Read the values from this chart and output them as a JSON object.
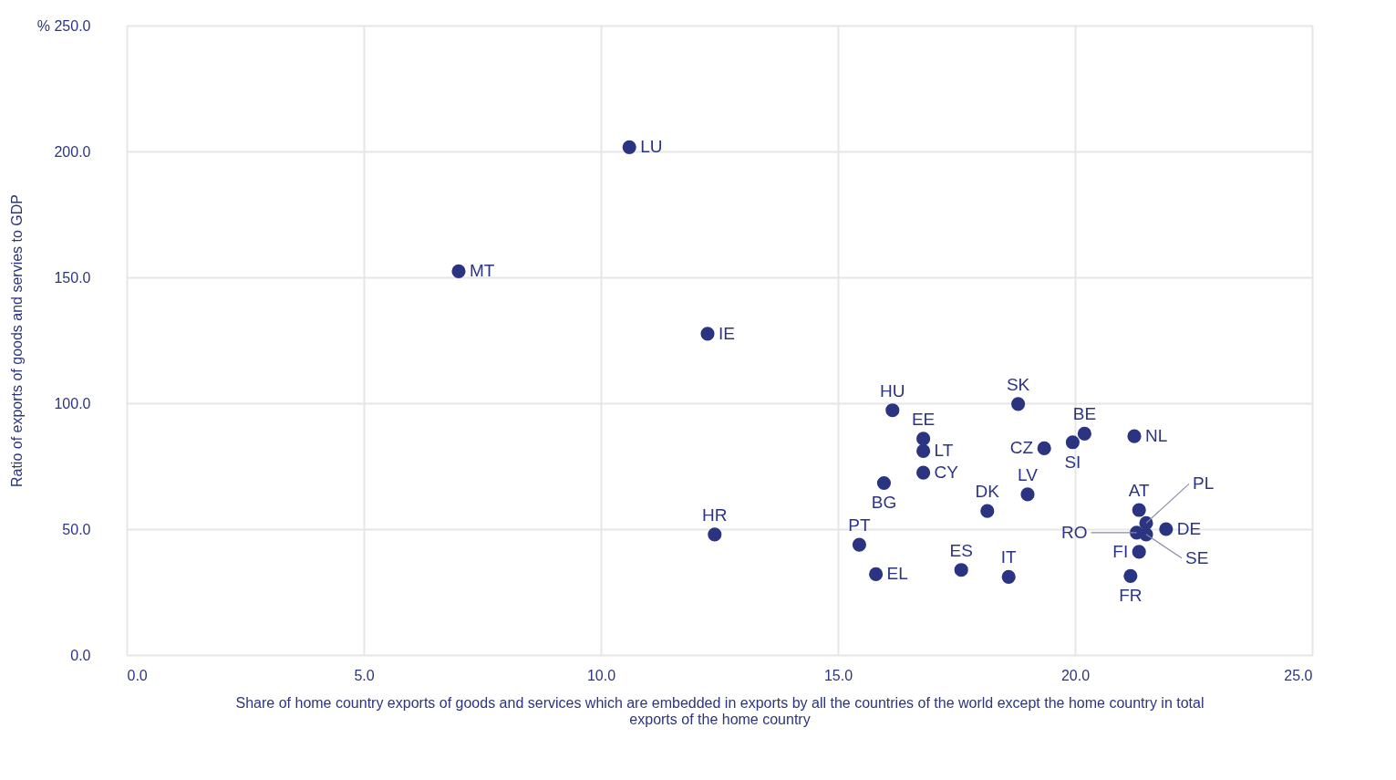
{
  "chart_data": {
    "type": "scatter",
    "xlabel": "Share of home country exports of goods and services which are embedded in exports by all the countries of the world except the home country in total exports of the home country",
    "ylabel": "Ratio of exports of goods and servies to GDP",
    "x": [
      10.6,
      7.0,
      12.25,
      12.4,
      16.15,
      16.8,
      16.8,
      16.8,
      15.97,
      15.45,
      15.8,
      17.6,
      18.6,
      18.15,
      19.0,
      18.8,
      19.35,
      19.95,
      20.2,
      21.25,
      21.35,
      21.5,
      21.3,
      21.92,
      21.5,
      21.35,
      21.17
    ],
    "series": [
      {
        "color": "#2b3480",
        "values": [
          201.7,
          152.4,
          127.6,
          47.9,
          97.2,
          85.9,
          81.0,
          72.4,
          68.3,
          43.8,
          32.1,
          33.8,
          31.0,
          57.2,
          63.8,
          99.7,
          82.1,
          84.5,
          87.9,
          86.9,
          57.6,
          52.4,
          48.6,
          50.0,
          47.9,
          41.0,
          31.4
        ]
      }
    ],
    "annotations": [
      {
        "text": "LU",
        "x": 10.6,
        "y": 201.7
      },
      {
        "text": "MT",
        "x": 7.0,
        "y": 152.4
      },
      {
        "text": "IE",
        "x": 12.25,
        "y": 127.6
      },
      {
        "text": "HR",
        "x": 12.4,
        "y": 47.9
      },
      {
        "text": "HU",
        "x": 16.15,
        "y": 97.2
      },
      {
        "text": "EE",
        "x": 16.8,
        "y": 85.9
      },
      {
        "text": "LT",
        "x": 16.8,
        "y": 81.0
      },
      {
        "text": "CY",
        "x": 16.8,
        "y": 72.4
      },
      {
        "text": "BG",
        "x": 15.97,
        "y": 68.3
      },
      {
        "text": "PT",
        "x": 15.45,
        "y": 43.8
      },
      {
        "text": "EL",
        "x": 15.8,
        "y": 32.1
      },
      {
        "text": "ES",
        "x": 17.6,
        "y": 33.8
      },
      {
        "text": "IT",
        "x": 18.6,
        "y": 31.0
      },
      {
        "text": "DK",
        "x": 18.15,
        "y": 57.2
      },
      {
        "text": "LV",
        "x": 19.0,
        "y": 63.8
      },
      {
        "text": "SK",
        "x": 18.8,
        "y": 99.7
      },
      {
        "text": "CZ",
        "x": 19.35,
        "y": 82.1
      },
      {
        "text": "SI",
        "x": 19.95,
        "y": 84.5
      },
      {
        "text": "BE",
        "x": 20.2,
        "y": 87.9
      },
      {
        "text": "NL",
        "x": 21.25,
        "y": 86.9
      },
      {
        "text": "AT",
        "x": 21.35,
        "y": 57.6
      },
      {
        "text": "PL",
        "x": 21.5,
        "y": 52.4
      },
      {
        "text": "RO",
        "x": 21.3,
        "y": 48.6
      },
      {
        "text": "DE",
        "x": 21.92,
        "y": 50.0
      },
      {
        "text": "SE",
        "x": 21.5,
        "y": 47.9
      },
      {
        "text": "FI",
        "x": 21.35,
        "y": 41.0
      },
      {
        "text": "FR",
        "x": 21.17,
        "y": 31.4
      }
    ],
    "xlim": [
      0,
      25
    ],
    "xticks": [
      {
        "value": 0,
        "label": "0.0"
      },
      {
        "value": 5,
        "label": "5.0"
      },
      {
        "value": 10,
        "label": "10.0"
      },
      {
        "value": 15,
        "label": "15.0"
      },
      {
        "value": 20,
        "label": "20.0"
      },
      {
        "value": 25,
        "label": "25.0"
      }
    ],
    "ylim": [
      0,
      250
    ],
    "yticks": [
      {
        "value": 0,
        "label": "0.0"
      },
      {
        "value": 50,
        "label": "50.0"
      },
      {
        "value": 100,
        "label": "100.0"
      },
      {
        "value": 150,
        "label": "150.0"
      },
      {
        "value": 200,
        "label": "200.0"
      },
      {
        "value": 250,
        "label": "% 250.0"
      }
    ],
    "grid": true,
    "marker": "circle"
  }
}
